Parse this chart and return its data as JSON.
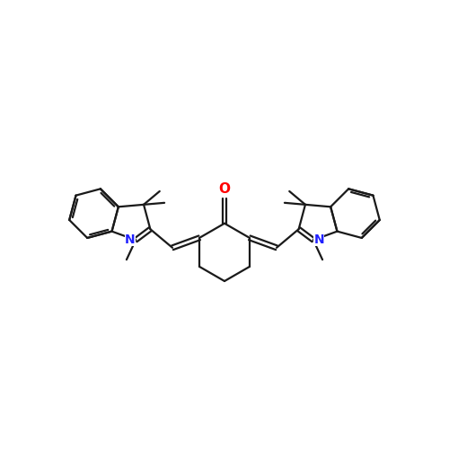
{
  "background_color": "#ffffff",
  "bond_color": "#1a1a1a",
  "bond_width": 1.6,
  "atom_colors": {
    "N": "#2020ff",
    "O": "#ff0000",
    "C": "#000000"
  },
  "figsize": [
    5.0,
    5.0
  ],
  "dpi": 100
}
